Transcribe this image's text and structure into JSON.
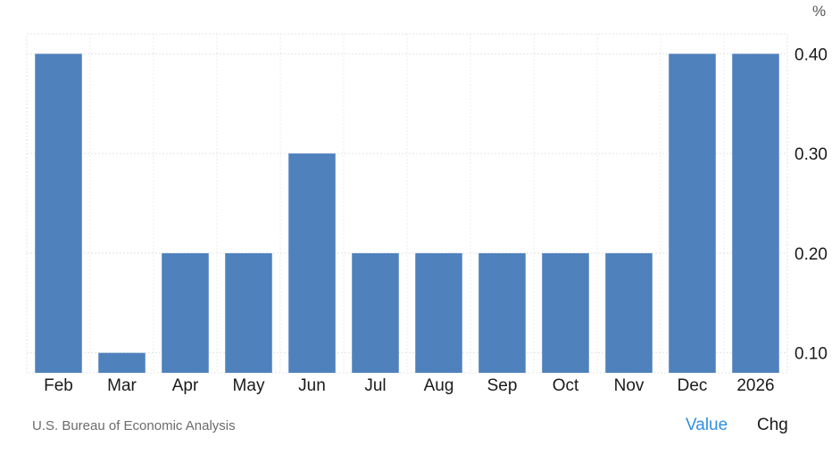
{
  "chart_data": {
    "type": "bar",
    "categories": [
      "Feb",
      "Mar",
      "Apr",
      "May",
      "Jun",
      "Jul",
      "Aug",
      "Sep",
      "Oct",
      "Nov",
      "Dec",
      "2026"
    ],
    "values": [
      0.4,
      0.1,
      0.2,
      0.2,
      0.3,
      0.2,
      0.2,
      0.2,
      0.2,
      0.2,
      0.4,
      0.4
    ],
    "unit": "%",
    "ylim": [
      0.08,
      0.42
    ],
    "yticks": [
      "0.40",
      "0.30",
      "0.20",
      "0.10"
    ],
    "ytick_values": [
      0.4,
      0.3,
      0.2,
      0.1
    ],
    "bar_color": "#4f81bd",
    "grid": true,
    "y_axis_side": "right"
  },
  "footer": {
    "source": "U.S. Bureau of Economic Analysis",
    "toggle_value": "Value",
    "toggle_chg": "Chg"
  },
  "colors": {
    "active_toggle": "#2f8fe0"
  }
}
